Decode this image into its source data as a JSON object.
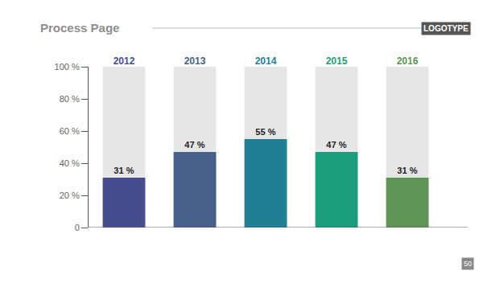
{
  "chart_data": {
    "type": "bar",
    "title": "Process Page",
    "categories": [
      "2012",
      "2013",
      "2014",
      "2015",
      "2016"
    ],
    "values": [
      31,
      47,
      55,
      47,
      31
    ],
    "value_labels": [
      "31 %",
      "47 %",
      "55 %",
      "47 %",
      "31 %"
    ],
    "colors": [
      "#474c8c",
      "#47608a",
      "#1f7f93",
      "#1d9e7a",
      "#5e9456"
    ],
    "ylim": [
      0,
      100
    ],
    "yticks": [
      0,
      {
        "value": 20,
        "label": "20 %"
      },
      {
        "value": 40,
        "label": "40 %"
      },
      {
        "value": 60,
        "label": "60 %"
      },
      {
        "value": 80,
        "label": "80 %"
      },
      {
        "value": 100,
        "label": "100 %"
      }
    ],
    "grid": false,
    "data_labels": true,
    "annotations": [
      "LOGOTYPE",
      "50"
    ]
  }
}
